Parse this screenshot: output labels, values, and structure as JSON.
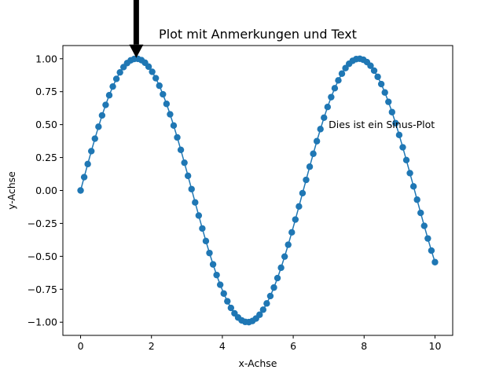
{
  "chart_data": {
    "type": "line",
    "title": "Plot mit Anmerkungen und Text",
    "xlabel": "x-Achse",
    "ylabel": "y-Achse",
    "xlim": [
      -0.5,
      10.5
    ],
    "ylim": [
      -1.1,
      1.1
    ],
    "x_ticks": [
      0,
      2,
      4,
      6,
      8,
      10
    ],
    "x_tick_labels": [
      "0",
      "2",
      "4",
      "6",
      "8",
      "10"
    ],
    "y_ticks": [
      -1.0,
      -0.75,
      -0.5,
      -0.25,
      0.0,
      0.25,
      0.5,
      0.75,
      1.0
    ],
    "y_tick_labels": [
      "−1.00",
      "−0.75",
      "−0.50",
      "−0.25",
      "0.00",
      "0.25",
      "0.50",
      "0.75",
      "1.00"
    ],
    "grid": false,
    "legend": "none",
    "series": [
      {
        "function": "sin(x)",
        "x_start": 0,
        "x_end": 10,
        "num_points": 100,
        "marker": "circle",
        "color": "#1f77b4"
      }
    ],
    "annotations": [
      {
        "kind": "arrow",
        "text": "",
        "point": [
          1.5708,
          1.0
        ],
        "text_position": [
          1.5708,
          1.5
        ],
        "color": "#000000"
      },
      {
        "kind": "text",
        "text": "Dies ist ein Sinus-Plot",
        "position": [
          7,
          0.5
        ]
      }
    ]
  }
}
